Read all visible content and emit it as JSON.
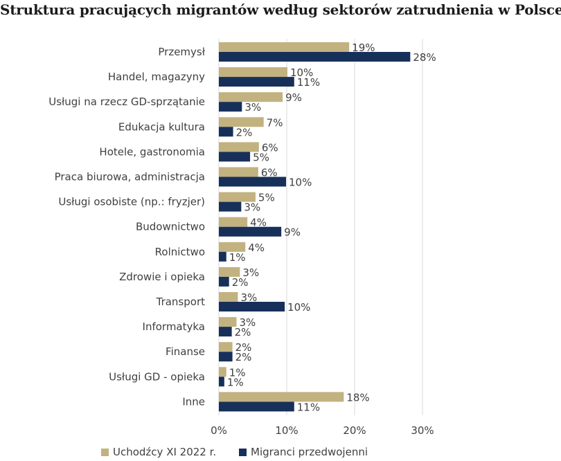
{
  "chart_data": {
    "type": "bar",
    "orientation": "horizontal",
    "title": "Struktura pracujących migrantów według sektorów zatrudnienia w Polsce",
    "categories": [
      "Przemysł",
      "Handel, magazyny",
      "Usługi na rzecz GD-sprzątanie",
      "Edukacja kultura",
      "Hotele, gastronomia",
      "Praca biurowa, administracja",
      "Usługi osobiste (np.: fryzjer)",
      "Budownictwo",
      "Rolnictwo",
      "Zdrowie i opieka",
      "Transport",
      "Informatyka",
      "Finanse",
      "Usługi GD - opieka",
      "Inne"
    ],
    "series": [
      {
        "name": "Uchodźcy XI 2022 r.",
        "color": "#c2b280",
        "values": [
          19.2,
          10.1,
          9.4,
          6.6,
          5.9,
          5.8,
          5.4,
          4.2,
          3.9,
          3.1,
          2.8,
          2.6,
          2.0,
          1.1,
          18.4
        ],
        "labels": [
          "19%",
          "10%",
          "9%",
          "7%",
          "6%",
          "6%",
          "5%",
          "4%",
          "4%",
          "3%",
          "3%",
          "3%",
          "2%",
          "1%",
          "18%"
        ]
      },
      {
        "name": "Migranci przedwojenni",
        "color": "#17305a",
        "values": [
          28.2,
          11.1,
          3.4,
          2.1,
          4.6,
          9.9,
          3.3,
          9.2,
          1.1,
          1.5,
          9.7,
          1.9,
          2.0,
          0.8,
          11.1
        ],
        "labels": [
          "28%",
          "11%",
          "3%",
          "2%",
          "5%",
          "10%",
          "3%",
          "9%",
          "1%",
          "2%",
          "10%",
          "2%",
          "2%",
          "1%",
          "11%"
        ]
      }
    ],
    "xlim": [
      0,
      30
    ],
    "xticks": [
      0,
      10,
      20,
      30
    ],
    "xtick_labels": [
      "0%",
      "10%",
      "20%",
      "30%"
    ],
    "grid": "vertical",
    "gridline_color": "#d9d9d9",
    "legend_position": "bottom"
  }
}
